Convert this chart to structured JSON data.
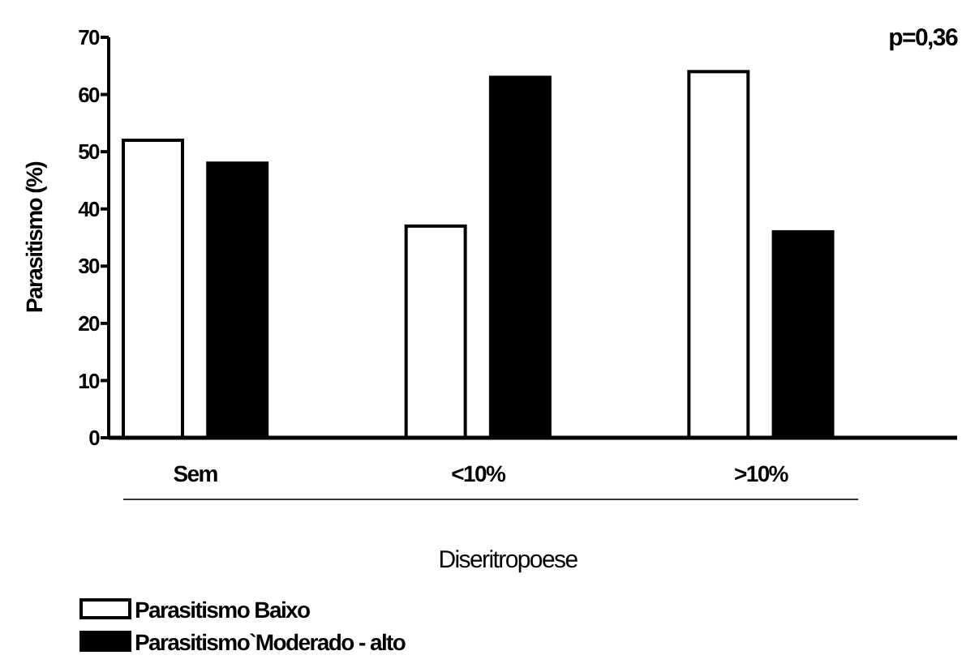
{
  "chart_data": {
    "type": "bar",
    "xlabel": "Diseritropoese",
    "ylabel": "Parasitismo (%)",
    "categories": [
      "Sem",
      "<10%",
      ">10%"
    ],
    "series": [
      {
        "name": "Parasitismo Baixo",
        "color": "#ffffff",
        "values": [
          52,
          37,
          64
        ]
      },
      {
        "name": "Parasitismo`Moderado - alto",
        "color": "#000000",
        "values": [
          48,
          63,
          36
        ]
      }
    ],
    "ylim": [
      0,
      70
    ],
    "yticks": [
      0,
      10,
      20,
      30,
      40,
      50,
      60,
      70
    ],
    "grid": false,
    "legend": "bottom",
    "annotations": [
      "p=0,36"
    ]
  }
}
